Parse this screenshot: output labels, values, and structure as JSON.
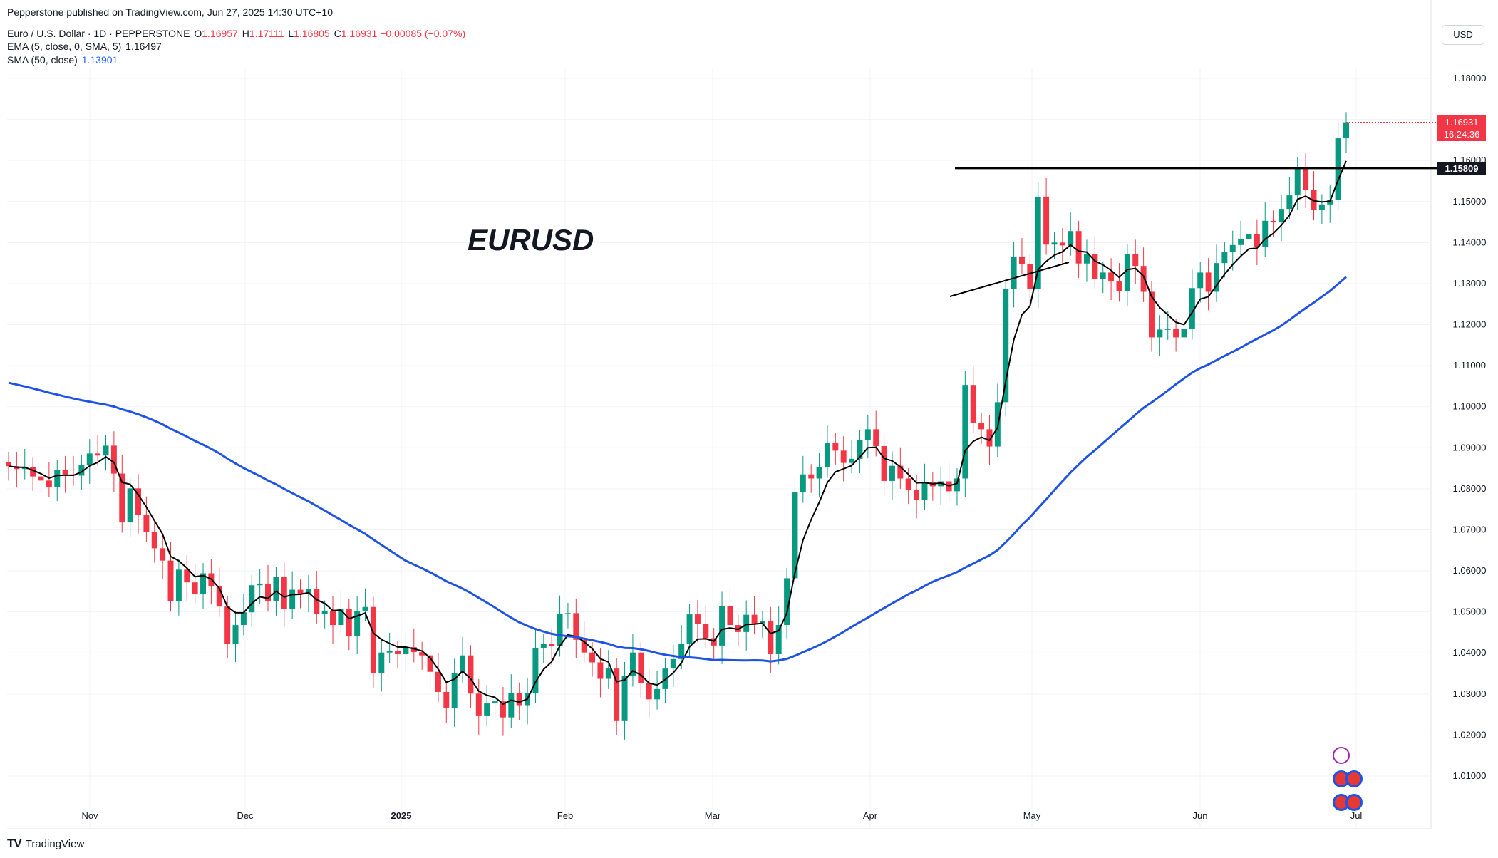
{
  "publisher": "Pepperstone published on TradingView.com, Jun 27, 2025 14:30 UTC+10",
  "legend": {
    "symbol": "Euro / U.S. Dollar · 1D · PEPPERSTONE",
    "o_label": "O",
    "o_value": "1.16957",
    "h_label": "H",
    "h_value": "1.17111",
    "l_label": "L",
    "l_value": "1.16805",
    "c_label": "C",
    "c_value": "1.16931",
    "change": "−0.00085 (−0.07%)",
    "ema_label": "EMA (5, close, 0, SMA, 5)",
    "ema_value": "1.16497",
    "sma_label": "SMA (50, close)",
    "sma_value": "1.13901"
  },
  "currency_button": "USD",
  "annotation_title": "EURUSD",
  "last_price": {
    "price": "1.16931",
    "countdown": "16:24:36"
  },
  "resistance_price": "1.15809",
  "watermark": "TradingView",
  "colors": {
    "up": "#089981",
    "down": "#f23645",
    "ema": "#000000",
    "sma": "#1e53e5",
    "resistance": "#000000"
  },
  "chart_data": {
    "type": "candlestick",
    "y_axis": {
      "ticks": [
        "1.18000",
        "1.17000",
        "1.16000",
        "1.15000",
        "1.14000",
        "1.13000",
        "1.12000",
        "1.11000",
        "1.10000",
        "1.09000",
        "1.08000",
        "1.07000",
        "1.06000",
        "1.05000",
        "1.04000",
        "1.03000",
        "1.02000",
        "1.01000"
      ],
      "range": [
        1.0,
        1.1841
      ]
    },
    "x_axis": {
      "ticks": [
        {
          "label": "Nov",
          "date": "2024-11-01"
        },
        {
          "label": "Dec",
          "date": "2024-12-02"
        },
        {
          "label": "2025",
          "date": "2025-01-01"
        },
        {
          "label": "Feb",
          "date": "2025-02-03"
        },
        {
          "label": "Mar",
          "date": "2025-03-03"
        },
        {
          "label": "Apr",
          "date": "2025-04-01"
        },
        {
          "label": "May",
          "date": "2025-05-01"
        },
        {
          "label": "Jun",
          "date": "2025-06-02"
        },
        {
          "label": "Jul",
          "date": "2025-07-01"
        }
      ]
    },
    "closes": [
      1.0855,
      1.0848,
      1.0852,
      1.083,
      1.082,
      1.0805,
      1.0845,
      1.0835,
      1.0832,
      1.0857,
      1.0886,
      1.0881,
      1.0905,
      1.0837,
      1.0718,
      1.0801,
      1.0736,
      1.0695,
      1.0655,
      1.0625,
      1.0526,
      1.0603,
      1.0572,
      1.0543,
      1.0594,
      1.0563,
      1.0513,
      1.0423,
      1.0468,
      1.0499,
      1.0565,
      1.0569,
      1.0526,
      1.0585,
      1.0508,
      1.0554,
      1.0544,
      1.0555,
      1.0495,
      1.0503,
      1.0468,
      1.0507,
      1.0442,
      1.0503,
      1.0512,
      1.0351,
      1.0401,
      1.0404,
      1.0397,
      1.0414,
      1.0402,
      1.0394,
      1.0354,
      1.0305,
      1.0265,
      1.0351,
      1.0394,
      1.0301,
      1.0246,
      1.0277,
      1.0282,
      1.0243,
      1.0303,
      1.0271,
      1.0303,
      1.0411,
      1.0422,
      1.0416,
      1.0495,
      1.0497,
      1.0432,
      1.0401,
      1.0377,
      1.0337,
      1.0362,
      1.0234,
      1.0343,
      1.0401,
      1.0326,
      1.0287,
      1.0312,
      1.0362,
      1.0385,
      1.0423,
      1.0494,
      1.0471,
      1.0436,
      1.0418,
      1.0514,
      1.0468,
      1.0451,
      1.0493,
      1.0472,
      1.0477,
      1.0397,
      1.0468,
      1.0582,
      1.0791,
      1.0835,
      1.0825,
      1.0852,
      1.0911,
      1.0893,
      1.0863,
      1.0873,
      1.0919,
      1.0945,
      1.0904,
      1.0819,
      1.0856,
      1.0825,
      1.0798,
      1.0773,
      1.0816,
      1.0806,
      1.0818,
      1.0794,
      1.0825,
      1.1053,
      1.0961,
      1.0945,
      1.0903,
      1.1011,
      1.1287,
      1.1366,
      1.1347,
      1.1286,
      1.1512,
      1.1395,
      1.14,
      1.1393,
      1.1428,
      1.1349,
      1.1372,
      1.1312,
      1.1327,
      1.1305,
      1.1281,
      1.1372,
      1.1343,
      1.128,
      1.1169,
      1.1188,
      1.1189,
      1.1169,
      1.1189,
      1.1289,
      1.1327,
      1.128,
      1.135,
      1.1377,
      1.1394,
      1.1408,
      1.142,
      1.139,
      1.1453,
      1.1449,
      1.1482,
      1.1515,
      1.1583,
      1.1529,
      1.1479,
      1.1493,
      1.1504,
      1.1654,
      1.1693
    ]
  }
}
